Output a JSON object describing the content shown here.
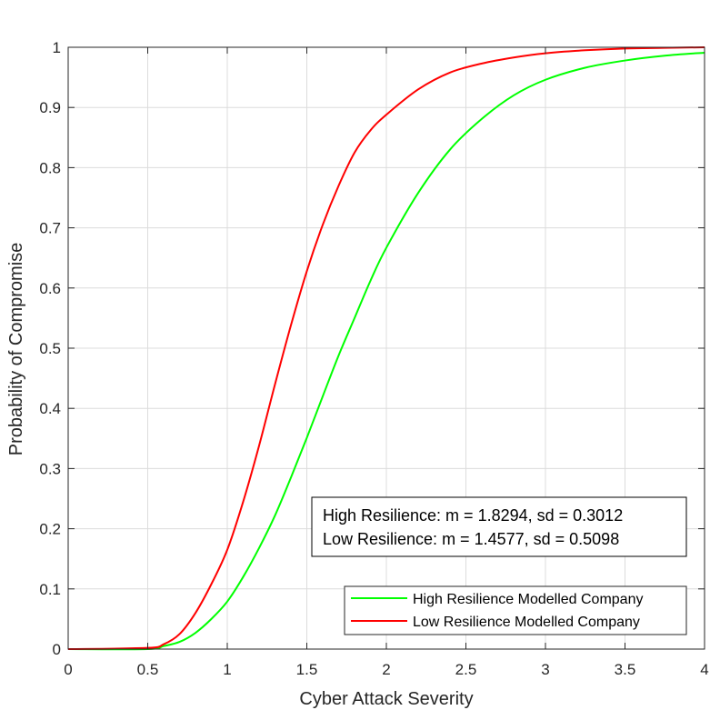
{
  "chart_data": {
    "type": "line",
    "title": "",
    "xlabel": "Cyber Attack Severity",
    "ylabel": "Probability of Compromise",
    "xlim": [
      0,
      4
    ],
    "ylim": [
      0,
      1
    ],
    "x_ticks": [
      0,
      0.5,
      1,
      1.5,
      2,
      2.5,
      3,
      3.5,
      4
    ],
    "x_tick_labels": [
      "0",
      "0.5",
      "1",
      "1.5",
      "2",
      "2.5",
      "3",
      "3.5",
      "4"
    ],
    "y_ticks": [
      0,
      0.1,
      0.2,
      0.3,
      0.4,
      0.5,
      0.6,
      0.7,
      0.8,
      0.9,
      1
    ],
    "y_tick_labels": [
      "0",
      "0.1",
      "0.2",
      "0.3",
      "0.4",
      "0.5",
      "0.6",
      "0.7",
      "0.8",
      "0.9",
      "1"
    ],
    "grid": true,
    "legend_position": "bottom-right",
    "annotation": {
      "lines": [
        "High Resilience: m = 1.8294, sd = 0.3012",
        "Low Resilience: m = 1.4577, sd = 0.5098"
      ]
    },
    "series": [
      {
        "name": "High Resilience Modelled Company",
        "color": "#00ff00",
        "x": [
          0,
          0.5,
          0.6,
          0.7,
          0.8,
          0.9,
          1.0,
          1.1,
          1.2,
          1.3,
          1.4,
          1.5,
          1.6,
          1.7,
          1.8,
          1.9,
          2.0,
          2.2,
          2.4,
          2.6,
          2.8,
          3.0,
          3.25,
          3.5,
          3.75,
          4.0
        ],
        "y": [
          0,
          0,
          0.005,
          0.012,
          0.027,
          0.05,
          0.079,
          0.12,
          0.168,
          0.222,
          0.285,
          0.351,
          0.42,
          0.488,
          0.55,
          0.612,
          0.667,
          0.758,
          0.83,
          0.881,
          0.92,
          0.946,
          0.966,
          0.978,
          0.986,
          0.991
        ]
      },
      {
        "name": "Low Resilience Modelled Company",
        "color": "#ff0000",
        "x": [
          0,
          0.5,
          0.6,
          0.7,
          0.8,
          0.9,
          1.0,
          1.1,
          1.2,
          1.3,
          1.4,
          1.5,
          1.6,
          1.7,
          1.8,
          1.9,
          2.0,
          2.2,
          2.4,
          2.6,
          2.8,
          3.0,
          3.25,
          3.5,
          3.75,
          4.0
        ],
        "y": [
          0,
          0.002,
          0.008,
          0.025,
          0.06,
          0.108,
          0.165,
          0.245,
          0.338,
          0.44,
          0.538,
          0.628,
          0.705,
          0.77,
          0.825,
          0.862,
          0.888,
          0.93,
          0.958,
          0.973,
          0.983,
          0.99,
          0.995,
          0.998,
          0.999,
          1.0
        ]
      }
    ]
  }
}
